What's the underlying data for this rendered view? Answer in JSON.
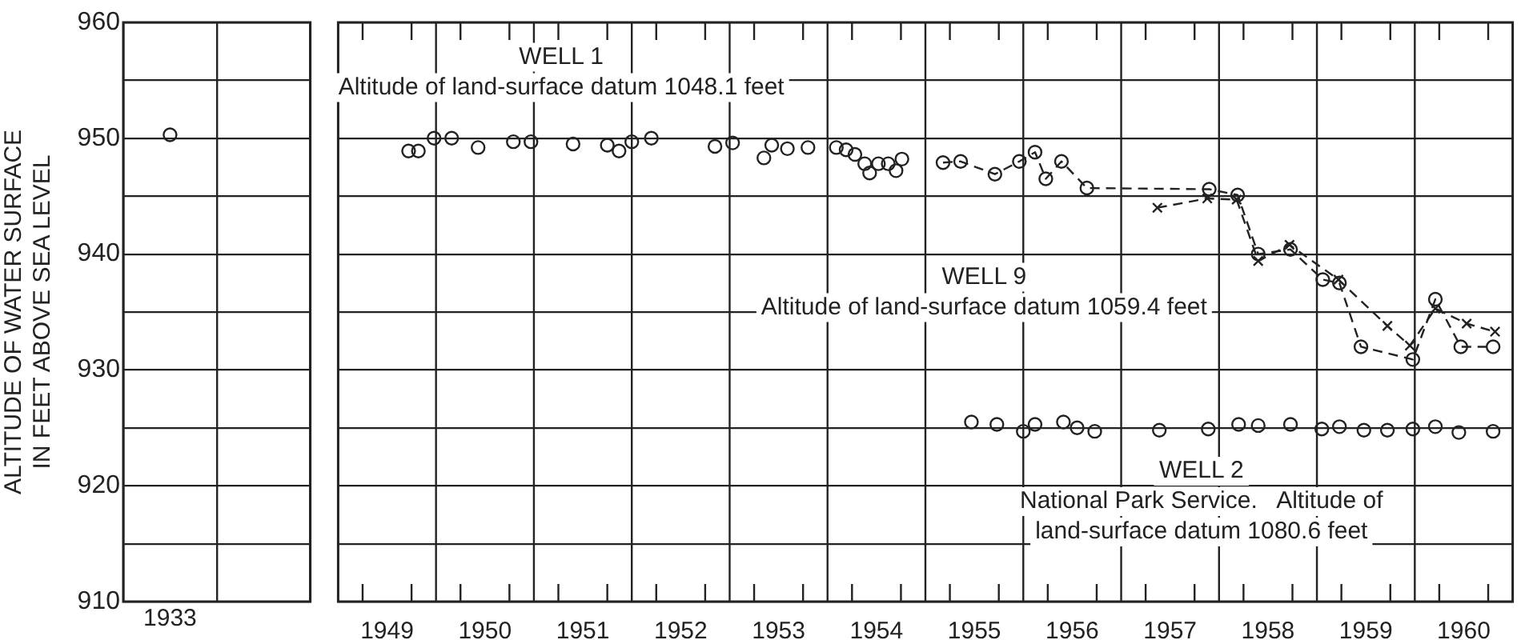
{
  "chart_data": [
    {
      "type": "scatter",
      "ylabel": "ALTITUDE OF WATER SURFACE\nIN FEET ABOVE SEA LEVEL",
      "categories": [
        "1933",
        null
      ],
      "ylim": [
        910,
        960
      ],
      "yticks": [
        910,
        {
          "value": 915,
          "label": null
        },
        920,
        {
          "value": 925,
          "label": null
        },
        930,
        {
          "value": 935,
          "label": null
        },
        940,
        {
          "value": 945,
          "label": null
        },
        950,
        {
          "value": 955,
          "label": null
        },
        960
      ],
      "grid": true,
      "legend": false,
      "series": [
        {
          "color": "#222222",
          "marker": "circle",
          "values": [
            950.3,
            null
          ]
        }
      ]
    },
    {
      "type": "scatter",
      "xlim": [
        1949,
        1961
      ],
      "ylim": [
        910,
        960
      ],
      "tick_labels": "x",
      "grid": true,
      "legend": false,
      "xticks": [
        {
          "value": 1949.25,
          "label": null
        },
        {
          "value": 1949.5,
          "label": "1949"
        },
        {
          "value": 1949.75,
          "label": null
        },
        {
          "value": 1950,
          "label": null
        },
        {
          "value": 1950.25,
          "label": null
        },
        {
          "value": 1950.5,
          "label": "1950"
        },
        {
          "value": 1950.75,
          "label": null
        },
        {
          "value": 1951,
          "label": null
        },
        {
          "value": 1951.25,
          "label": null
        },
        {
          "value": 1951.5,
          "label": "1951"
        },
        {
          "value": 1951.75,
          "label": null
        },
        {
          "value": 1952,
          "label": null
        },
        {
          "value": 1952.25,
          "label": null
        },
        {
          "value": 1952.5,
          "label": "1952"
        },
        {
          "value": 1952.75,
          "label": null
        },
        {
          "value": 1953,
          "label": null
        },
        {
          "value": 1953.25,
          "label": null
        },
        {
          "value": 1953.5,
          "label": "1953"
        },
        {
          "value": 1953.75,
          "label": null
        },
        {
          "value": 1954,
          "label": null
        },
        {
          "value": 1954.25,
          "label": null
        },
        {
          "value": 1954.5,
          "label": "1954"
        },
        {
          "value": 1954.75,
          "label": null
        },
        {
          "value": 1955,
          "label": null
        },
        {
          "value": 1955.25,
          "label": null
        },
        {
          "value": 1955.5,
          "label": "1955"
        },
        {
          "value": 1955.75,
          "label": null
        },
        {
          "value": 1956,
          "label": null
        },
        {
          "value": 1956.25,
          "label": null
        },
        {
          "value": 1956.5,
          "label": "1956"
        },
        {
          "value": 1956.75,
          "label": null
        },
        {
          "value": 1957,
          "label": null
        },
        {
          "value": 1957.25,
          "label": null
        },
        {
          "value": 1957.5,
          "label": "1957"
        },
        {
          "value": 1957.75,
          "label": null
        },
        {
          "value": 1958,
          "label": null
        },
        {
          "value": 1958.25,
          "label": null
        },
        {
          "value": 1958.5,
          "label": "1958"
        },
        {
          "value": 1958.75,
          "label": null
        },
        {
          "value": 1959,
          "label": null
        },
        {
          "value": 1959.25,
          "label": null
        },
        {
          "value": 1959.5,
          "label": "1959"
        },
        {
          "value": 1959.75,
          "label": null
        },
        {
          "value": 1960,
          "label": null
        },
        {
          "value": 1960.25,
          "label": null
        },
        {
          "value": 1960.5,
          "label": "1960"
        },
        {
          "value": 1960.75,
          "label": null
        }
      ],
      "yticks": [
        910,
        {
          "value": 915,
          "label": null
        },
        920,
        {
          "value": 925,
          "label": null
        },
        930,
        {
          "value": 935,
          "label": null
        },
        940,
        {
          "value": 945,
          "label": null
        },
        950,
        {
          "value": 955,
          "label": null
        },
        960
      ],
      "annotations": [
        "WELL 1\nAltitude of land-surface datum 1048.1 feet",
        "WELL 9\nAltitude of land-surface datum 1059.4 feet",
        "WELL 2\nNational Park Service.   Altitude of\nland-surface datum 1080.6 feet"
      ],
      "series": [
        {
          "color": "#222222",
          "marker": "circle",
          "x": [
            1949.72,
            1949.82,
            1949.98,
            1950.16,
            1950.43,
            1950.79,
            1950.97,
            1951.4,
            1951.75,
            1951.87,
            1952.0,
            1952.2,
            1952.85,
            1953.03,
            1953.35,
            1953.43,
            1953.59,
            1953.8,
            1954.09,
            1954.19,
            1954.28,
            1954.38,
            1954.43,
            1954.52,
            1954.62,
            1954.7,
            1954.76
          ],
          "values": [
            948.9,
            948.9,
            950.0,
            950.0,
            949.2,
            949.7,
            949.7,
            949.5,
            949.4,
            948.9,
            949.7,
            950.0,
            949.3,
            949.6,
            948.3,
            949.4,
            949.1,
            949.2,
            949.2,
            949.0,
            948.6,
            947.8,
            947.0,
            947.8,
            947.8,
            947.2,
            948.2
          ]
        },
        {
          "type": "line",
          "color": "#222222",
          "marker": "circle",
          "line_style": "dashed",
          "x": [
            1955.18,
            1955.36,
            1955.71,
            1955.96,
            1956.12,
            1956.23,
            1956.39,
            1956.65,
            1957.9,
            1958.19,
            1958.4,
            1958.73,
            1959.06,
            1959.23,
            1959.45,
            1959.98,
            1960.21,
            1960.47,
            1960.8
          ],
          "values": [
            947.9,
            948.0,
            946.9,
            948.0,
            948.8,
            946.5,
            948.0,
            945.7,
            945.6,
            945.1,
            940.0,
            940.4,
            937.8,
            937.5,
            932.0,
            930.9,
            936.1,
            932.0,
            932.0
          ]
        },
        {
          "type": "line",
          "color": "#222222",
          "marker": "cross",
          "line_style": "dashed",
          "x": [
            1957.37,
            1957.88,
            1958.18,
            1958.4,
            1958.72,
            1959.22,
            1959.72,
            1959.95,
            1960.21,
            1960.53,
            1960.82
          ],
          "values": [
            944.0,
            944.8,
            944.7,
            939.4,
            940.8,
            937.8,
            933.8,
            932.1,
            935.3,
            934.0,
            933.3
          ]
        },
        {
          "color": "#222222",
          "marker": "circle",
          "x": [
            1955.47,
            1955.73,
            1956.0,
            1956.12,
            1956.41,
            1956.55,
            1956.73,
            1957.39,
            1957.89,
            1958.2,
            1958.4,
            1958.73,
            1959.05,
            1959.23,
            1959.48,
            1959.72,
            1959.98,
            1960.21,
            1960.45,
            1960.8
          ],
          "values": [
            925.5,
            925.3,
            924.7,
            925.3,
            925.5,
            925.0,
            924.7,
            924.8,
            924.9,
            925.3,
            925.2,
            925.3,
            924.9,
            925.1,
            924.8,
            924.8,
            924.9,
            925.1,
            924.6,
            924.7
          ]
        }
      ]
    }
  ]
}
